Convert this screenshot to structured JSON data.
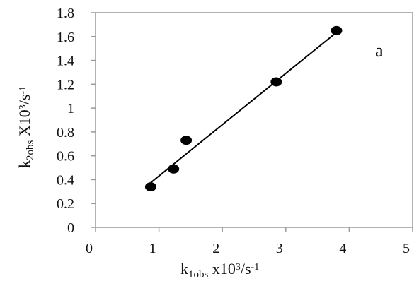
{
  "chart_data": {
    "type": "scatter",
    "panel_label": "a",
    "xlabel": {
      "parts": [
        {
          "text": "k",
          "style": "normal"
        },
        {
          "text": "1obs",
          "style": "sub"
        },
        {
          "text": " x10",
          "style": "normal"
        },
        {
          "text": "3",
          "style": "sup"
        },
        {
          "text": "/s",
          "style": "normal"
        },
        {
          "text": "-1",
          "style": "sup"
        }
      ]
    },
    "ylabel": {
      "parts": [
        {
          "text": "k",
          "style": "normal"
        },
        {
          "text": "2obs",
          "style": "sub"
        },
        {
          "text": " X10",
          "style": "normal"
        },
        {
          "text": "3",
          "style": "sup"
        },
        {
          "text": "/s",
          "style": "normal"
        },
        {
          "text": "-1",
          "style": "sup"
        }
      ]
    },
    "xlim": [
      0,
      5
    ],
    "ylim": [
      0,
      1.8
    ],
    "xticks": [
      0,
      1,
      2,
      3,
      4,
      5
    ],
    "xtick_labels": [
      "0",
      "1",
      "2",
      "3",
      "4",
      "5"
    ],
    "yticks": [
      0,
      0.2,
      0.4,
      0.6,
      0.8,
      1,
      1.2,
      1.4,
      1.6,
      1.8
    ],
    "ytick_labels": [
      "0",
      "0.2",
      "0.4",
      "0.6",
      "0.8",
      "1",
      "1.2",
      "1.4",
      "1.6",
      "1.8"
    ],
    "grid": false,
    "series": [
      {
        "x": [
          0.87,
          1.23,
          1.43,
          2.85,
          3.8
        ],
        "y": [
          0.34,
          0.49,
          0.73,
          1.22,
          1.65
        ],
        "marker": "filled-circle",
        "color": "#000000"
      }
    ],
    "trendline": {
      "type": "linear",
      "x": [
        0.87,
        3.8
      ],
      "y": [
        0.375,
        1.635
      ],
      "color": "#000000"
    }
  }
}
